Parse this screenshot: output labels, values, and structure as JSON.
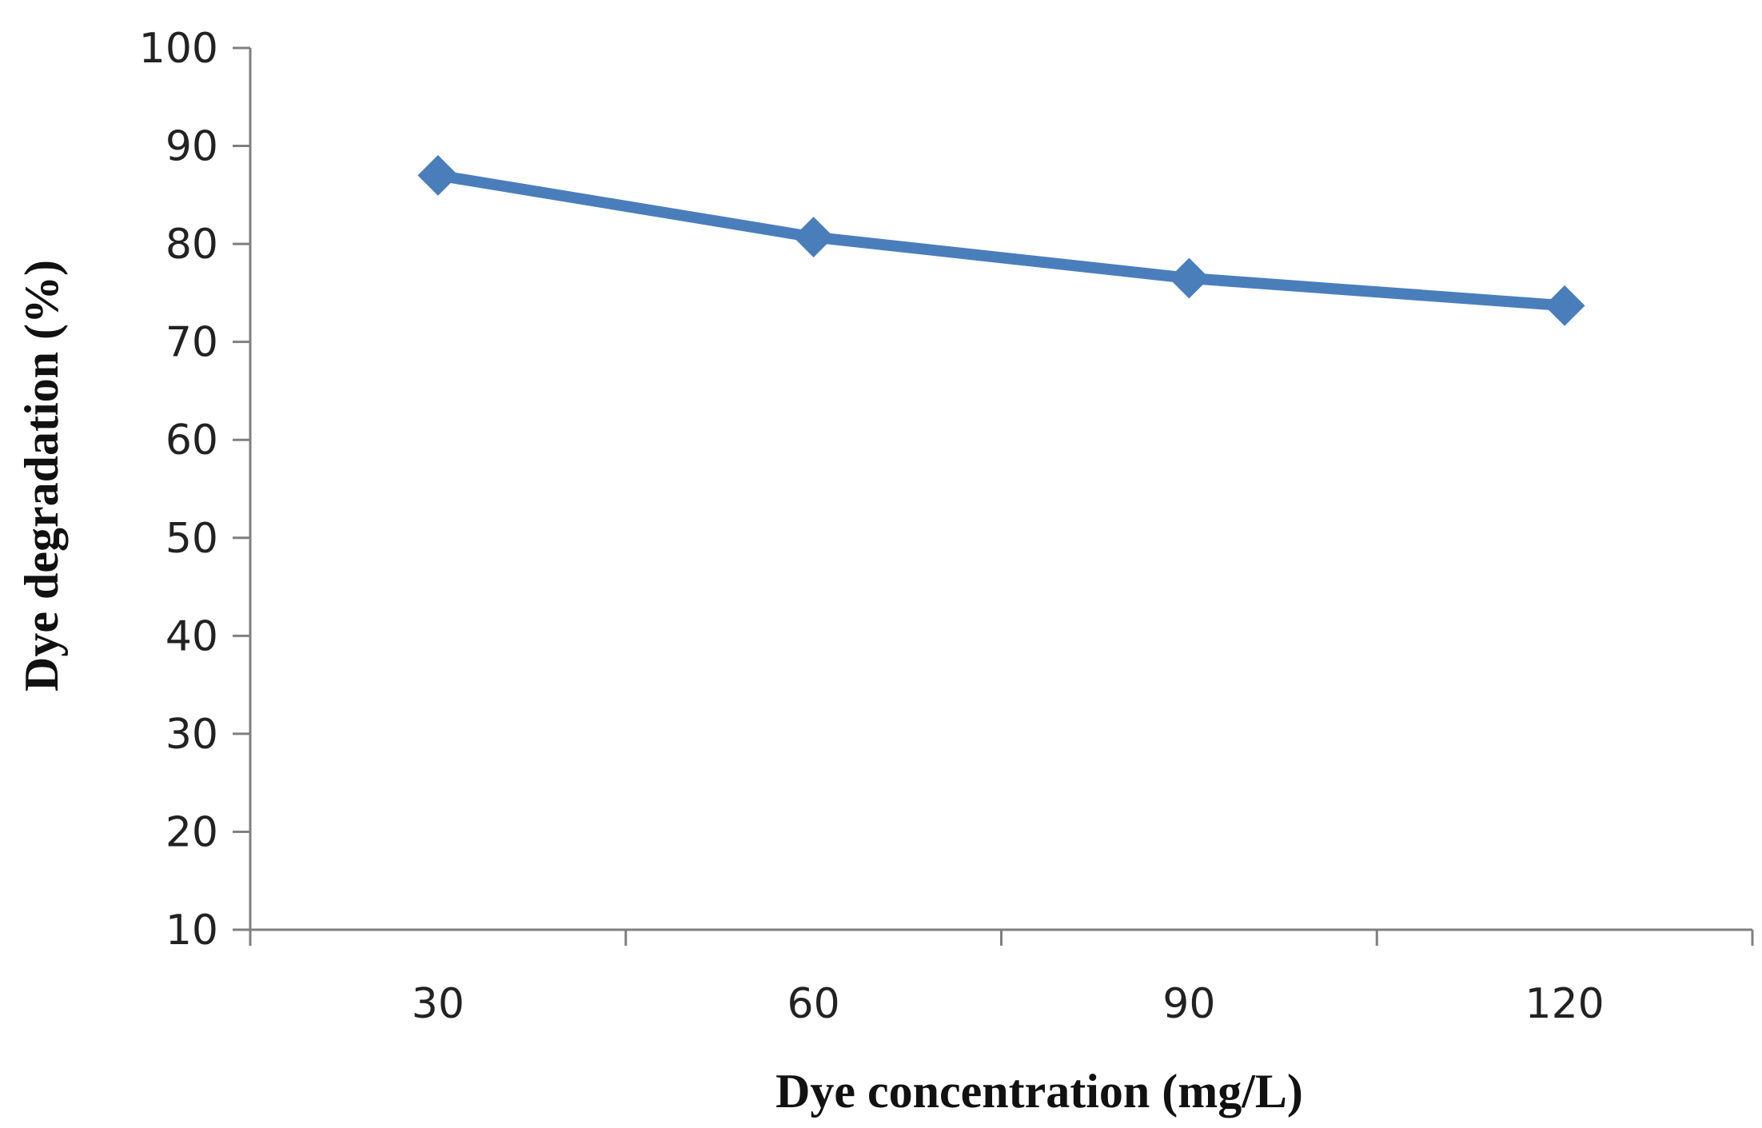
{
  "chart_data": {
    "type": "line",
    "title": "",
    "xlabel": "Dye concentration (mg/L)",
    "ylabel": "Dye degradation (%)",
    "categories": [
      "30",
      "60",
      "90",
      "120"
    ],
    "series": [
      {
        "values": [
          87,
          80.7,
          76.5,
          73.7
        ]
      }
    ],
    "ylim": [
      10,
      100
    ],
    "yticks": [
      "10",
      "20",
      "30",
      "40",
      "50",
      "60",
      "70",
      "80",
      "90",
      "100"
    ],
    "grid": false,
    "legend": "none",
    "line_color": "#4a7ebb",
    "marker": "diamond"
  }
}
